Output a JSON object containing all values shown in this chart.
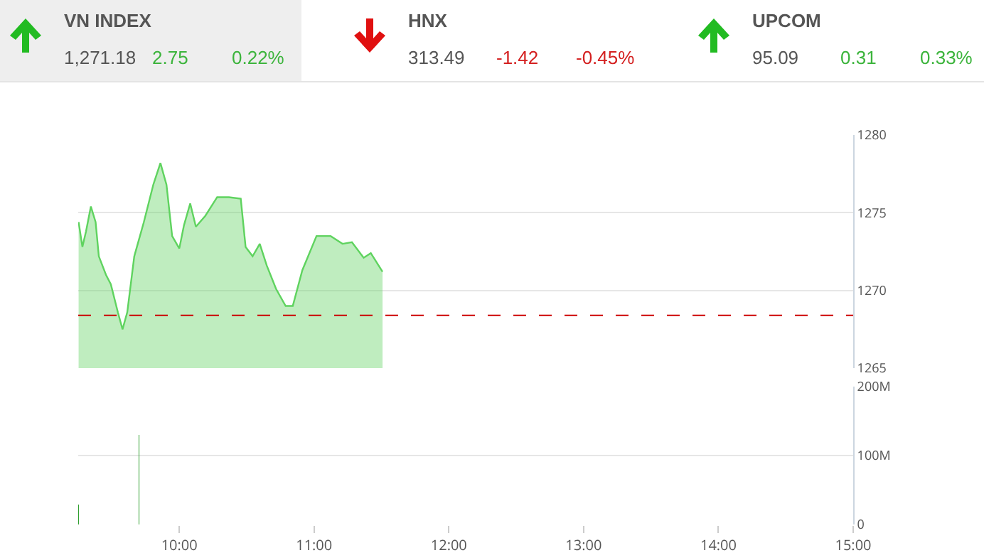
{
  "chart_data": [
    {
      "type": "other",
      "annotations": [
        "VN INDEX",
        "1,271.18",
        "2.75",
        "0.22%",
        "HNX",
        "313.49",
        "-1.42",
        "-0.45%",
        "UPCOM",
        "95.09",
        "0.31",
        "0.33%"
      ]
    },
    {
      "type": "area",
      "x": [
        9.253,
        9.281,
        9.308,
        9.344,
        9.379,
        9.403,
        9.456,
        9.492,
        9.544,
        9.579,
        9.614,
        9.666,
        9.737,
        9.807,
        9.86,
        9.905,
        9.947,
        10.0,
        10.035,
        10.081,
        10.123,
        10.193,
        10.281,
        10.368,
        10.456,
        10.492,
        10.544,
        10.597,
        10.649,
        10.718,
        10.789,
        10.842,
        10.913,
        11.018,
        11.123,
        11.211,
        11.281,
        11.368,
        11.421,
        11.508
      ],
      "series": [
        {
          "color": "#5fd35f",
          "values": [
            1274.4,
            1272.8,
            1273.8,
            1275.4,
            1274.4,
            1272.2,
            1271.0,
            1270.4,
            1268.6,
            1267.5,
            1268.6,
            1272.2,
            1274.4,
            1276.8,
            1278.2,
            1276.8,
            1273.5,
            1272.7,
            1274.2,
            1275.6,
            1274.1,
            1274.8,
            1276.0,
            1276.0,
            1275.9,
            1272.8,
            1272.2,
            1273.0,
            1271.6,
            1270.1,
            1269.0,
            1269.0,
            1271.3,
            1273.5,
            1273.5,
            1273.0,
            1273.1,
            1272.1,
            1272.4,
            1271.2
          ]
        }
      ],
      "xlim": [
        9.25,
        15
      ],
      "ylim": [
        1265,
        1280
      ],
      "yticks": [
        1265,
        1270,
        1275,
        1280
      ],
      "grid": "y",
      "tick_labels": "y",
      "ref_lines": [
        {
          "axis": "y",
          "value": 1268.4,
          "color": "#cc0000",
          "line_style": "dashed"
        }
      ]
    },
    {
      "type": "bar",
      "x": [
        9.253,
        9.702
      ],
      "values": [
        29000000,
        130000000
      ],
      "color": "#2e9e2e",
      "xlim": [
        9.25,
        15
      ],
      "xticks": [
        {
          "value": 10,
          "label": "10:00"
        },
        {
          "value": 11,
          "label": "11:00"
        },
        {
          "value": 12,
          "label": "12:00"
        },
        {
          "value": 13,
          "label": "13:00"
        },
        {
          "value": 14,
          "label": "14:00"
        },
        {
          "value": 15,
          "label": "15:00"
        }
      ],
      "ylim": [
        0,
        200000000
      ],
      "yticks": [
        {
          "value": 0,
          "label": "0"
        },
        {
          "value": 100000000,
          "label": "100M"
        },
        {
          "value": 200000000,
          "label": "200M"
        }
      ],
      "grid": "y"
    }
  ]
}
